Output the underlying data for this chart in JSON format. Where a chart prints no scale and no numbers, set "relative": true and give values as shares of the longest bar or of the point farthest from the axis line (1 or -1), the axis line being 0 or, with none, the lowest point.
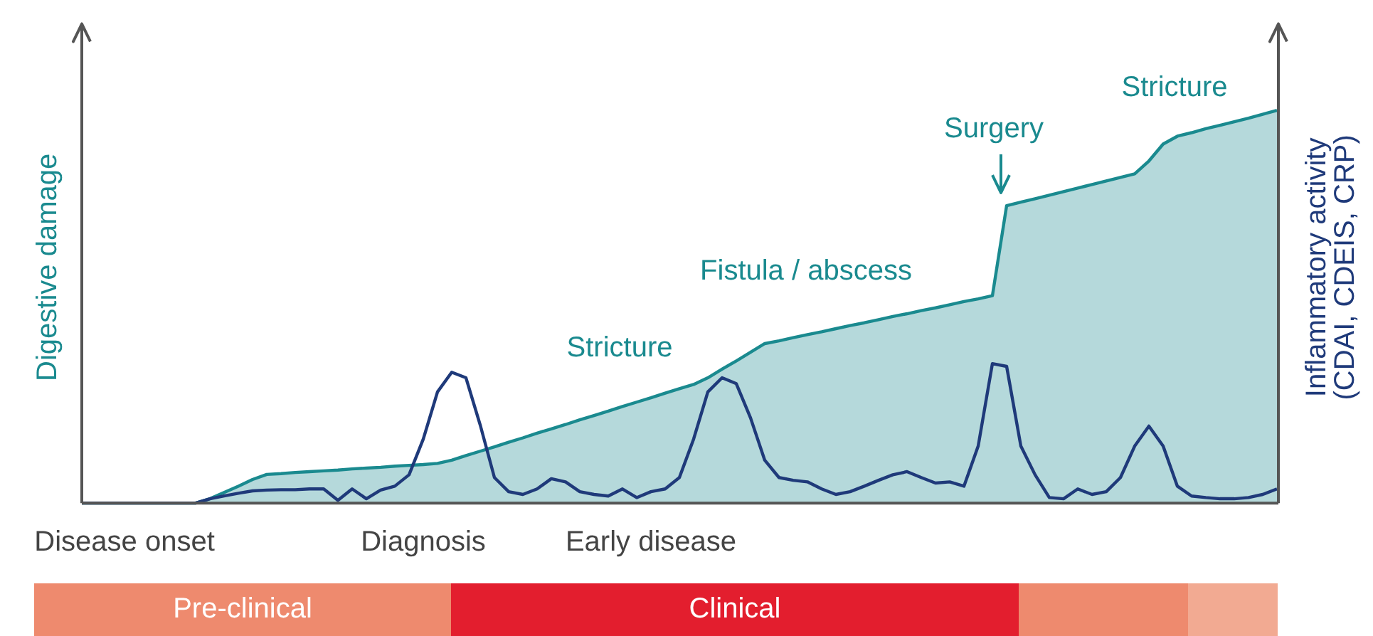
{
  "chart_data": {
    "type": "line",
    "relative": true,
    "ylabel": "Digestive damage",
    "y2label": "Inflammatory activity\n(CDAI, CDEIS, CRP)",
    "categories": [
      null,
      null,
      null,
      "Disease onset",
      null,
      null,
      null,
      null,
      null,
      null,
      null,
      null,
      null,
      null,
      null,
      null,
      null,
      null,
      null,
      null,
      null,
      null,
      null,
      null,
      "Diagnosis",
      null,
      null,
      null,
      null,
      null,
      null,
      null,
      null,
      null,
      null,
      null,
      null,
      null,
      null,
      null,
      "Early disease",
      null,
      null,
      null,
      null,
      null,
      null,
      null,
      null,
      null,
      null,
      null,
      null,
      null,
      null,
      null,
      null,
      null,
      null,
      null,
      null,
      null,
      null,
      null,
      null,
      null,
      null,
      null,
      null,
      null,
      null,
      null,
      null,
      null,
      null,
      null,
      null,
      null,
      null,
      null,
      null,
      null,
      null,
      null,
      null
    ],
    "series": [
      {
        "type": "area",
        "color": "#1a8a8f",
        "values": [
          0,
          0,
          0,
          0,
          0,
          0,
          0,
          0,
          0,
          0.011,
          0.027,
          0.043,
          0.06,
          0.073,
          0.075,
          0.078,
          0.08,
          0.082,
          0.084,
          0.087,
          0.089,
          0.091,
          0.094,
          0.096,
          0.098,
          0.101,
          0.109,
          0.121,
          0.132,
          0.143,
          0.155,
          0.166,
          0.178,
          0.189,
          0.2,
          0.212,
          0.223,
          0.234,
          0.246,
          0.257,
          0.268,
          0.28,
          0.291,
          0.302,
          0.319,
          0.341,
          0.362,
          0.384,
          0.406,
          0.413,
          0.421,
          0.429,
          0.436,
          0.444,
          0.452,
          0.459,
          0.467,
          0.475,
          0.482,
          0.49,
          0.497,
          0.505,
          0.513,
          0.52,
          0.528,
          0.757,
          0.766,
          0.775,
          0.784,
          0.793,
          0.802,
          0.811,
          0.82,
          0.829,
          0.838,
          0.871,
          0.914,
          0.934,
          0.943,
          0.953,
          0.962,
          0.971,
          0.98,
          0.99,
          1.0
        ]
      },
      {
        "axis": "y2",
        "color": "#1f3a7a",
        "values": [
          0,
          0,
          0,
          0,
          0,
          0,
          0,
          0,
          0,
          0.011,
          0.018,
          0.025,
          0.031,
          0.033,
          0.034,
          0.034,
          0.036,
          0.036,
          0.007,
          0.036,
          0.011,
          0.033,
          0.043,
          0.072,
          0.163,
          0.283,
          0.333,
          0.319,
          0.199,
          0.065,
          0.029,
          0.022,
          0.036,
          0.062,
          0.054,
          0.029,
          0.022,
          0.018,
          0.036,
          0.014,
          0.029,
          0.036,
          0.065,
          0.163,
          0.283,
          0.319,
          0.304,
          0.217,
          0.109,
          0.065,
          0.058,
          0.054,
          0.036,
          0.022,
          0.029,
          0.043,
          0.058,
          0.072,
          0.08,
          0.065,
          0.051,
          0.054,
          0.043,
          0.145,
          0.355,
          0.348,
          0.145,
          0.072,
          0.014,
          0.011,
          0.036,
          0.022,
          0.029,
          0.065,
          0.145,
          0.196,
          0.145,
          0.043,
          0.018,
          0.014,
          0.011,
          0.011,
          0.014,
          0.022,
          0.036
        ]
      }
    ],
    "annotations": [
      "Stricture",
      "Fistula / abscess",
      "Surgery",
      "Stricture",
      "Pre-clinical",
      "Clinical"
    ]
  }
}
